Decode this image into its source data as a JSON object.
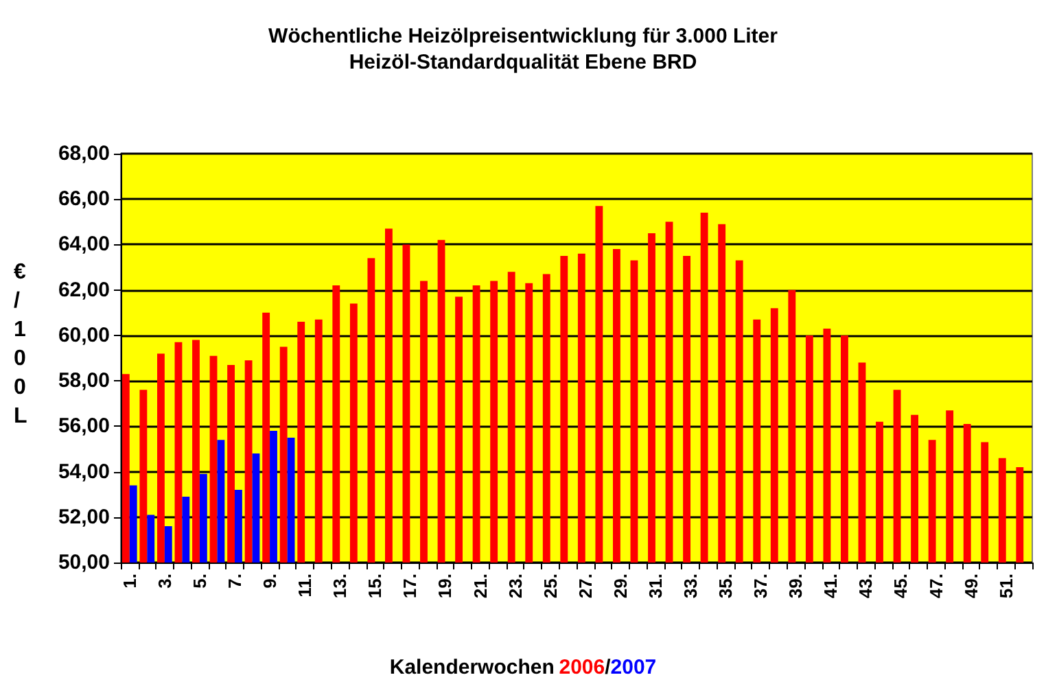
{
  "chart_data": {
    "type": "bar",
    "title": "Wöchentliche Heizölpreisentwicklung für 3.000 Liter",
    "subtitle": "Heizöl-Standardqualität Ebene BRD",
    "xlabel": "Kalenderwochen",
    "ylabel": "€/100L",
    "categories": [
      "1.",
      null,
      "3.",
      null,
      "5.",
      null,
      "7.",
      null,
      "9.",
      null,
      "11.",
      null,
      "13.",
      null,
      "15.",
      null,
      "17.",
      null,
      "19.",
      null,
      "21.",
      null,
      "23.",
      null,
      "25.",
      null,
      "27.",
      null,
      "29.",
      null,
      "31.",
      null,
      "33.",
      null,
      "35.",
      null,
      "37.",
      null,
      "39.",
      null,
      "41.",
      null,
      "43.",
      null,
      "45.",
      null,
      "47.",
      null,
      "49.",
      null,
      "51.",
      null
    ],
    "series": [
      {
        "name": "2006",
        "color": "#ff0000",
        "values": [
          58.3,
          57.6,
          59.2,
          59.7,
          59.8,
          59.1,
          58.7,
          58.9,
          61.0,
          59.5,
          60.6,
          60.7,
          62.2,
          61.4,
          63.4,
          64.7,
          64.0,
          62.4,
          64.2,
          61.7,
          62.2,
          62.4,
          62.8,
          62.3,
          62.7,
          63.5,
          63.6,
          65.7,
          63.8,
          63.3,
          64.5,
          65.0,
          63.5,
          65.4,
          64.9,
          63.3,
          60.7,
          61.2,
          62.0,
          60.0,
          60.3,
          60.0,
          58.8,
          56.2,
          57.6,
          56.5,
          55.4,
          56.7,
          56.1,
          55.3,
          54.6,
          54.2
        ]
      },
      {
        "name": "2007",
        "color": "#0000ff",
        "values": [
          53.4,
          52.1,
          51.6,
          52.9,
          53.9,
          55.4,
          53.2,
          54.8,
          55.8,
          55.5,
          null,
          null,
          null,
          null,
          null,
          null,
          null,
          null,
          null,
          null,
          null,
          null,
          null,
          null,
          null,
          null,
          null,
          null,
          null,
          null,
          null,
          null,
          null,
          null,
          null,
          null,
          null,
          null,
          null,
          null,
          null,
          null,
          null,
          null,
          null,
          null,
          null,
          null,
          null,
          null,
          null,
          null
        ]
      }
    ],
    "ylim": [
      50,
      68
    ],
    "yticks": [
      {
        "value": 50,
        "label": "50,00"
      },
      {
        "value": 52,
        "label": "52,00"
      },
      {
        "value": 54,
        "label": "54,00"
      },
      {
        "value": 56,
        "label": "56,00"
      },
      {
        "value": 58,
        "label": "58,00"
      },
      {
        "value": 60,
        "label": "60,00"
      },
      {
        "value": 62,
        "label": "62,00"
      },
      {
        "value": 64,
        "label": "64,00"
      },
      {
        "value": 66,
        "label": "66,00"
      },
      {
        "value": 68,
        "label": "68,00"
      }
    ],
    "annotations": [
      "/"
    ],
    "grid": "y",
    "legend": "bottom"
  }
}
